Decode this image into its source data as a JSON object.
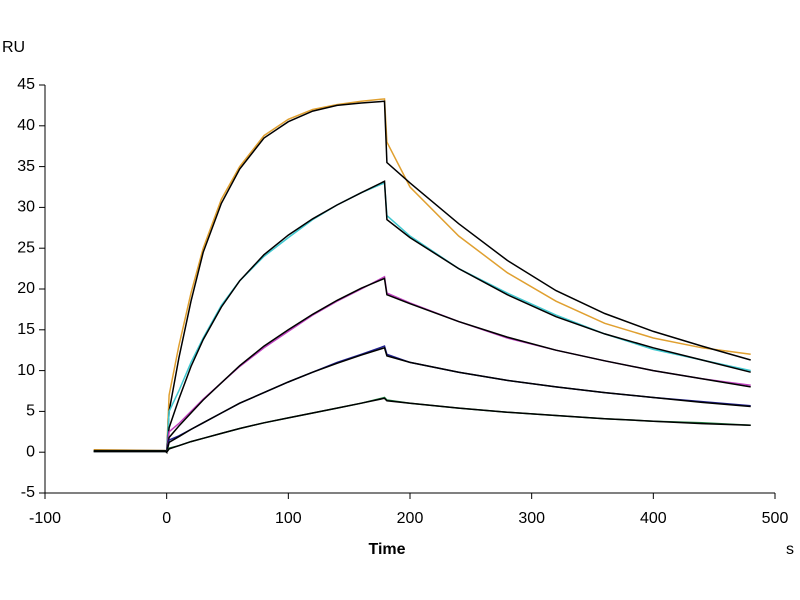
{
  "chart_data": {
    "type": "line",
    "y_label": "RU",
    "x_label": "Time",
    "x_unit": "s",
    "x": [
      -60,
      -1,
      0,
      2,
      10,
      20,
      30,
      45,
      60,
      80,
      100,
      120,
      140,
      160,
      179,
      181,
      200,
      240,
      280,
      320,
      360,
      400,
      440,
      480
    ],
    "series": [
      {
        "color": "#e0a030",
        "values": [
          0.3,
          0.2,
          0,
          7,
          13,
          19.5,
          25,
          31,
          35,
          38.8,
          40.8,
          42,
          42.6,
          43,
          43.3,
          38,
          32.5,
          26.5,
          22,
          18.5,
          15.8,
          14,
          12.8,
          12
        ]
      },
      {
        "color": "#000000",
        "values": [
          0.2,
          0.2,
          0,
          5,
          11.5,
          18.5,
          24.5,
          30.5,
          34.7,
          38.5,
          40.5,
          41.8,
          42.5,
          42.8,
          43,
          35.5,
          33,
          28,
          23.5,
          19.8,
          17,
          14.8,
          13,
          11.3
        ]
      },
      {
        "color": "#40c8d0",
        "values": [
          0.1,
          0.1,
          0,
          5,
          7.5,
          11,
          14,
          18,
          21,
          24,
          26.3,
          28.5,
          30.3,
          31.8,
          33,
          29,
          26.5,
          22.5,
          19.5,
          16.8,
          14.5,
          12.6,
          11.3,
          10
        ]
      },
      {
        "color": "#000000",
        "values": [
          0.1,
          0.1,
          0,
          3,
          6.5,
          10.5,
          13.8,
          17.8,
          21,
          24.2,
          26.6,
          28.6,
          30.3,
          31.8,
          33.2,
          28.5,
          26.3,
          22.5,
          19.3,
          16.6,
          14.5,
          12.8,
          11.3,
          9.8
        ]
      },
      {
        "color": "#c040c0",
        "values": [
          0.1,
          0.1,
          0,
          2.5,
          3.5,
          5,
          6.5,
          8.5,
          10.5,
          12.8,
          14.8,
          16.8,
          18.5,
          20,
          21.5,
          19.5,
          18.3,
          16,
          14,
          12.5,
          11.2,
          10,
          9,
          8.2
        ]
      },
      {
        "color": "#000000",
        "values": [
          0.1,
          0.1,
          0,
          1.8,
          3.2,
          4.8,
          6.4,
          8.5,
          10.6,
          13,
          15,
          16.9,
          18.6,
          20.1,
          21.3,
          19.3,
          18.2,
          16,
          14.1,
          12.5,
          11.2,
          10,
          9,
          8
        ]
      },
      {
        "color": "#202090",
        "values": [
          0.1,
          0.1,
          0,
          1.5,
          2,
          2.8,
          3.6,
          4.8,
          6,
          7.3,
          8.6,
          9.8,
          11,
          12,
          13,
          12,
          11,
          9.8,
          8.8,
          8,
          7.3,
          6.7,
          6.2,
          5.7
        ]
      },
      {
        "color": "#000000",
        "values": [
          0.1,
          0.1,
          0,
          1.2,
          1.9,
          2.8,
          3.6,
          4.8,
          6,
          7.3,
          8.6,
          9.8,
          10.9,
          11.9,
          12.8,
          11.8,
          11,
          9.8,
          8.8,
          8,
          7.3,
          6.7,
          6.1,
          5.6
        ]
      },
      {
        "color": "#208040",
        "values": [
          0.1,
          0.1,
          0,
          0.5,
          0.8,
          1.3,
          1.7,
          2.3,
          2.9,
          3.6,
          4.2,
          4.8,
          5.4,
          6,
          6.7,
          6.4,
          6,
          5.4,
          4.9,
          4.5,
          4.1,
          3.8,
          3.6,
          3.3
        ]
      },
      {
        "color": "#000000",
        "values": [
          0.1,
          0.1,
          0,
          0.4,
          0.8,
          1.3,
          1.7,
          2.3,
          2.9,
          3.6,
          4.2,
          4.8,
          5.4,
          6,
          6.6,
          6.3,
          6,
          5.4,
          4.9,
          4.5,
          4.1,
          3.8,
          3.5,
          3.3
        ]
      }
    ],
    "xlim": [
      -100,
      500
    ],
    "xticks": [
      -100,
      0,
      100,
      200,
      300,
      400,
      500
    ],
    "ylim": [
      -5,
      45
    ],
    "yticks": [
      -5,
      0,
      5,
      10,
      15,
      20,
      25,
      30,
      35,
      40,
      45
    ]
  }
}
